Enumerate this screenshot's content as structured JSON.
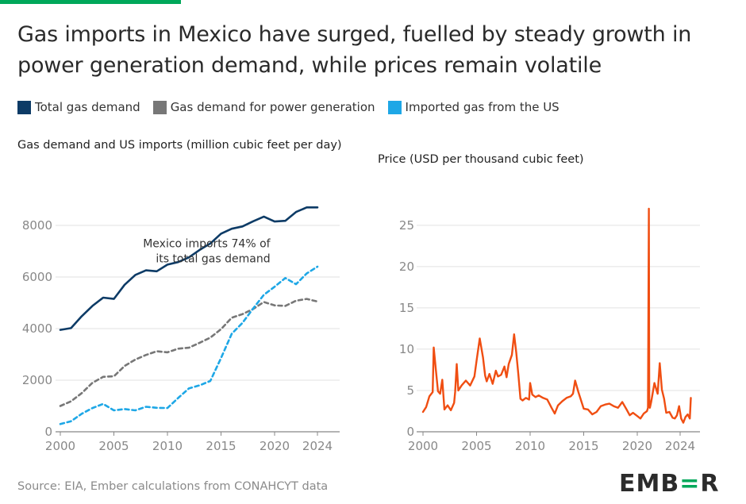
{
  "colors": {
    "accent": "#00a85a",
    "total": "#0d3b66",
    "power": "#777777",
    "imports": "#1ea7e6",
    "price": "#f04e12",
    "grid": "#e2e2e2",
    "axis": "#888888"
  },
  "title": "Gas imports in Mexico have surged, fuelled by steady growth in power generation demand, while prices remain volatile",
  "legend": [
    {
      "label": "Total gas demand",
      "color": "#0d3b66"
    },
    {
      "label": "Gas demand for power generation",
      "color": "#777777"
    },
    {
      "label": "Imported gas from the US",
      "color": "#1ea7e6"
    }
  ],
  "left_subtitle": "Gas demand and US imports (million cubic feet per day)",
  "right_subtitle": "Price (USD per thousand cubic feet)",
  "source": "Source: EIA, Ember calculations from CONAHCYT data",
  "logo": "EMB=R",
  "chart_data": [
    {
      "type": "line",
      "title": "Gas demand and US imports (million cubic feet per day)",
      "xlim": [
        2000,
        2024
      ],
      "ylim": [
        0,
        8000
      ],
      "xticks": [
        2000,
        2005,
        2010,
        2015,
        2020,
        2024
      ],
      "yticks": [
        0,
        2000,
        4000,
        6000,
        8000
      ],
      "annotation": {
        "lines": [
          "Mexico imports 74% of",
          "its total gas demand"
        ],
        "anchor_x": 2019.6,
        "anchor_y": 7150
      },
      "x": [
        2000,
        2001,
        2002,
        2003,
        2004,
        2005,
        2006,
        2007,
        2008,
        2009,
        2010,
        2011,
        2012,
        2013,
        2014,
        2015,
        2016,
        2017,
        2018,
        2019,
        2020,
        2021,
        2022,
        2023,
        2024
      ],
      "series": [
        {
          "name": "Total gas demand",
          "style": "solid",
          "values": [
            3950,
            4020,
            4480,
            4880,
            5200,
            5150,
            5700,
            6080,
            6260,
            6220,
            6480,
            6580,
            6760,
            7050,
            7300,
            7680,
            7870,
            7960,
            8160,
            8340,
            8150,
            8180,
            8520,
            8700,
            8700
          ]
        },
        {
          "name": "Gas demand for power generation",
          "style": "dashed",
          "values": [
            1000,
            1180,
            1500,
            1900,
            2130,
            2150,
            2550,
            2800,
            2980,
            3120,
            3080,
            3220,
            3260,
            3450,
            3650,
            3980,
            4420,
            4560,
            4760,
            5030,
            4900,
            4880,
            5080,
            5150,
            5050
          ]
        },
        {
          "name": "Imported gas from the US",
          "style": "dashed",
          "values": [
            300,
            410,
            700,
            920,
            1080,
            830,
            880,
            830,
            970,
            930,
            920,
            1310,
            1680,
            1800,
            1970,
            2860,
            3800,
            4220,
            4780,
            5310,
            5620,
            5960,
            5720,
            6140,
            6400
          ]
        }
      ]
    },
    {
      "type": "line",
      "title": "Price (USD per thousand cubic feet)",
      "xlim": [
        2000,
        2025
      ],
      "ylim": [
        0,
        27
      ],
      "xticks": [
        2000,
        2005,
        2010,
        2015,
        2020,
        2024
      ],
      "yticks": [
        0,
        5,
        10,
        15,
        20,
        25
      ],
      "series": [
        {
          "name": "Price",
          "style": "solid",
          "x": [
            2000,
            2000.3,
            2000.6,
            2000.9,
            2001,
            2001.2,
            2001.4,
            2001.6,
            2001.8,
            2002,
            2002.3,
            2002.6,
            2002.9,
            2003,
            2003.15,
            2003.3,
            2003.6,
            2004,
            2004.4,
            2004.8,
            2005,
            2005.3,
            2005.6,
            2005.8,
            2005.95,
            2006.2,
            2006.5,
            2006.8,
            2007,
            2007.3,
            2007.6,
            2007.8,
            2008,
            2008.3,
            2008.5,
            2008.7,
            2008.9,
            2009.1,
            2009.3,
            2009.6,
            2009.9,
            2010,
            2010.2,
            2010.5,
            2010.8,
            2011.2,
            2011.6,
            2012,
            2012.3,
            2012.6,
            2013,
            2013.4,
            2013.8,
            2014,
            2014.2,
            2014.5,
            2015,
            2015.4,
            2015.8,
            2016.2,
            2016.6,
            2017,
            2017.4,
            2017.8,
            2018.2,
            2018.6,
            2019,
            2019.3,
            2019.6,
            2020,
            2020.3,
            2020.6,
            2020.9,
            2021,
            2021.08,
            2021.12,
            2021.18,
            2021.3,
            2021.6,
            2021.9,
            2022.1,
            2022.3,
            2022.5,
            2022.7,
            2023,
            2023.3,
            2023.5,
            2023.7,
            2023.9,
            2024.1,
            2024.3,
            2024.5,
            2024.7,
            2024.9,
            2025
          ],
          "values": [
            2.4,
            3.0,
            4.3,
            4.8,
            10.2,
            7.5,
            4.9,
            4.6,
            6.3,
            2.7,
            3.2,
            2.6,
            3.5,
            4.8,
            8.2,
            5.0,
            5.6,
            6.2,
            5.6,
            6.7,
            8.6,
            11.3,
            9.0,
            6.8,
            6.1,
            7.0,
            5.8,
            7.4,
            6.7,
            6.9,
            7.9,
            6.6,
            8.2,
            9.3,
            11.8,
            9.6,
            6.9,
            4.0,
            3.8,
            4.1,
            3.9,
            5.9,
            4.5,
            4.2,
            4.4,
            4.1,
            3.9,
            2.9,
            2.2,
            3.2,
            3.7,
            4.1,
            4.3,
            4.6,
            6.2,
            4.8,
            2.8,
            2.7,
            2.1,
            2.4,
            3.1,
            3.3,
            3.4,
            3.1,
            2.9,
            3.6,
            2.7,
            2.0,
            2.3,
            1.9,
            1.6,
            2.2,
            2.5,
            2.9,
            27.0,
            4.0,
            2.9,
            3.6,
            5.9,
            4.6,
            8.3,
            5.1,
            4.0,
            2.3,
            2.4,
            1.7,
            1.6,
            2.0,
            3.1,
            1.6,
            1.1,
            1.8,
            2.1,
            1.6,
            4.1
          ]
        }
      ]
    }
  ]
}
